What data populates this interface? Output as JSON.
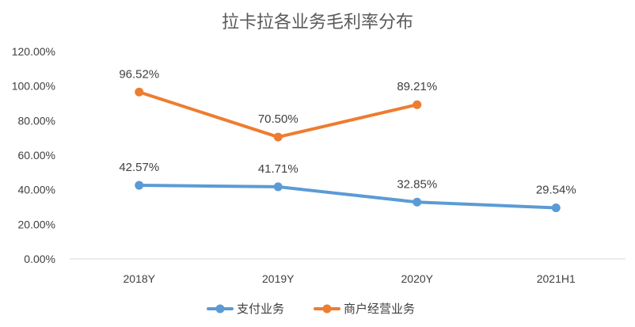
{
  "chart_data": {
    "type": "line",
    "title": "拉卡拉各业务毛利率分布",
    "xlabel": "",
    "ylabel": "",
    "categories": [
      "2018Y",
      "2019Y",
      "2020Y",
      "2021H1"
    ],
    "y_ticks": [
      "0.00%",
      "20.00%",
      "40.00%",
      "60.00%",
      "80.00%",
      "100.00%",
      "120.00%"
    ],
    "ylim": [
      0,
      120
    ],
    "grid": false,
    "legend_position": "bottom",
    "series": [
      {
        "name": "支付业务",
        "color": "#5B9BD5",
        "values": [
          42.57,
          41.71,
          32.85,
          29.54
        ],
        "labels": [
          "42.57%",
          "41.71%",
          "32.85%",
          "29.54%"
        ]
      },
      {
        "name": "商户经营业务",
        "color": "#ED7D31",
        "values": [
          96.52,
          70.5,
          89.21,
          null
        ],
        "labels": [
          "96.52%",
          "70.50%",
          "89.21%",
          null
        ]
      }
    ]
  }
}
